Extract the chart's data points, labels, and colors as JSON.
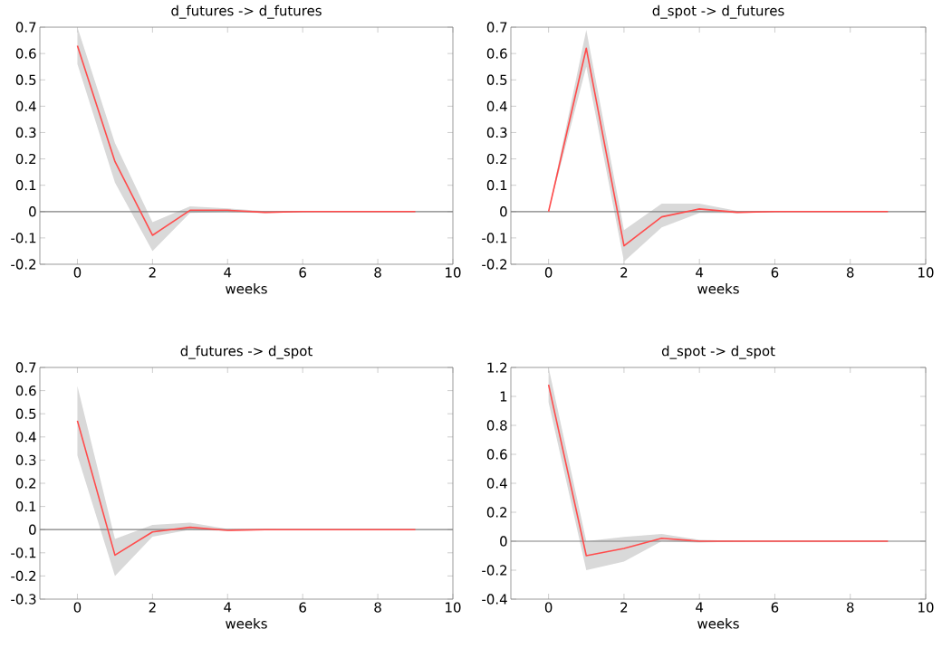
{
  "chart_data": [
    {
      "type": "line",
      "title": "d_futures -> d_futures",
      "xlabel": "weeks",
      "x": [
        0,
        1,
        2,
        3,
        4,
        5,
        6,
        7,
        8,
        9
      ],
      "xlim": [
        -1,
        10
      ],
      "xticks": [
        0,
        2,
        4,
        6,
        8,
        10
      ],
      "ylim": [
        -0.2,
        0.7
      ],
      "yticks": [
        -0.2,
        -0.1,
        0,
        0.1,
        0.2,
        0.3,
        0.4,
        0.5,
        0.6,
        0.7
      ],
      "ref_lines": [
        {
          "axis": "y",
          "value": 0,
          "color": "#808080"
        }
      ],
      "series": [
        {
          "color": "#ff4c4c",
          "values": [
            0.63,
            0.19,
            -0.09,
            0.005,
            0.005,
            -0.003,
            0,
            0,
            0,
            0
          ],
          "lower": [
            0.56,
            0.11,
            -0.15,
            -0.005,
            -0.002,
            -0.006,
            -0.002,
            0,
            0,
            0
          ],
          "upper": [
            0.7,
            0.26,
            -0.04,
            0.02,
            0.012,
            0.002,
            0.002,
            0,
            0,
            0
          ]
        }
      ]
    },
    {
      "type": "line",
      "title": "d_spot -> d_futures",
      "xlabel": "weeks",
      "x": [
        0,
        1,
        2,
        3,
        4,
        5,
        6,
        7,
        8,
        9
      ],
      "xlim": [
        -1,
        10
      ],
      "xticks": [
        0,
        2,
        4,
        6,
        8,
        10
      ],
      "ylim": [
        -0.2,
        0.7
      ],
      "yticks": [
        -0.2,
        -0.1,
        0,
        0.1,
        0.2,
        0.3,
        0.4,
        0.5,
        0.6,
        0.7
      ],
      "ref_lines": [
        {
          "axis": "y",
          "value": 0,
          "color": "#808080"
        }
      ],
      "series": [
        {
          "color": "#ff4c4c",
          "values": [
            0,
            0.62,
            -0.13,
            -0.02,
            0.01,
            -0.003,
            0,
            0,
            0,
            0
          ],
          "lower": [
            0,
            0.55,
            -0.19,
            -0.06,
            -0.005,
            -0.006,
            -0.002,
            0,
            0,
            0
          ],
          "upper": [
            0,
            0.69,
            -0.07,
            0.03,
            0.03,
            0.003,
            0.002,
            0,
            0,
            0
          ]
        }
      ]
    },
    {
      "type": "line",
      "title": "d_futures -> d_spot",
      "xlabel": "weeks",
      "x": [
        0,
        1,
        2,
        3,
        4,
        5,
        6,
        7,
        8,
        9
      ],
      "xlim": [
        -1,
        10
      ],
      "xticks": [
        0,
        2,
        4,
        6,
        8,
        10
      ],
      "ylim": [
        -0.3,
        0.7
      ],
      "yticks": [
        -0.3,
        -0.2,
        -0.1,
        0,
        0.1,
        0.2,
        0.3,
        0.4,
        0.5,
        0.6,
        0.7
      ],
      "ref_lines": [
        {
          "axis": "y",
          "value": 0,
          "color": "#808080"
        }
      ],
      "series": [
        {
          "color": "#ff4c4c",
          "values": [
            0.47,
            -0.11,
            -0.01,
            0.01,
            -0.003,
            0,
            0,
            0,
            0,
            0
          ],
          "lower": [
            0.32,
            -0.2,
            -0.03,
            0,
            -0.006,
            -0.002,
            0,
            0,
            0,
            0
          ],
          "upper": [
            0.62,
            -0.04,
            0.02,
            0.03,
            0.003,
            0.002,
            0,
            0,
            0,
            0
          ]
        }
      ]
    },
    {
      "type": "line",
      "title": "d_spot -> d_spot",
      "xlabel": "weeks",
      "x": [
        0,
        1,
        2,
        3,
        4,
        5,
        6,
        7,
        8,
        9
      ],
      "xlim": [
        -1,
        10
      ],
      "xticks": [
        0,
        2,
        4,
        6,
        8,
        10
      ],
      "ylim": [
        -0.4,
        1.2
      ],
      "yticks": [
        -0.4,
        -0.2,
        0,
        0.2,
        0.4,
        0.6,
        0.8,
        1,
        1.2
      ],
      "ref_lines": [
        {
          "axis": "y",
          "value": 0,
          "color": "#808080"
        }
      ],
      "series": [
        {
          "color": "#ff4c4c",
          "values": [
            1.08,
            -0.1,
            -0.05,
            0.02,
            0,
            0,
            0,
            0,
            0,
            0
          ],
          "lower": [
            0.96,
            -0.2,
            -0.14,
            0,
            -0.01,
            -0.003,
            0,
            0,
            0,
            0
          ],
          "upper": [
            1.2,
            0,
            0.03,
            0.05,
            0.01,
            0.003,
            0,
            0,
            0,
            0
          ]
        }
      ]
    }
  ]
}
